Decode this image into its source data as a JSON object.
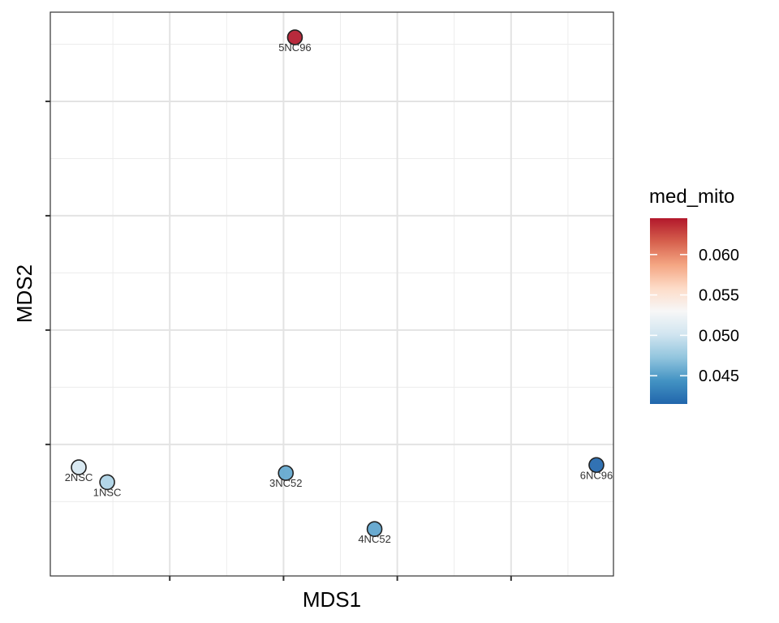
{
  "chart_data": {
    "type": "scatter",
    "xlabel": "MDS1",
    "ylabel": "MDS2",
    "xlim": [
      -2.05,
      2.9
    ],
    "ylim": [
      -2.15,
      2.78
    ],
    "x_major_breaks": [
      -1,
      0,
      1,
      2
    ],
    "x_minor_breaks": [
      -1.5,
      -0.5,
      0.5,
      1.5,
      2.5
    ],
    "y_major_breaks": [
      -1,
      0,
      1,
      2
    ],
    "y_minor_breaks": [
      -1.5,
      -0.5,
      0.5,
      1.5,
      2.5
    ],
    "grid": true,
    "x_tick_labels_shown": false,
    "y_tick_labels_shown": false,
    "points": [
      {
        "label": "5NC96",
        "x": 0.1,
        "y": 2.56,
        "med_mito": 0.0645
      },
      {
        "label": "2NSC",
        "x": -1.8,
        "y": -1.2,
        "med_mito": 0.0505
      },
      {
        "label": "1NSC",
        "x": -1.55,
        "y": -1.33,
        "med_mito": 0.0485
      },
      {
        "label": "3NC52",
        "x": 0.02,
        "y": -1.25,
        "med_mito": 0.0455
      },
      {
        "label": "4NC52",
        "x": 0.8,
        "y": -1.74,
        "med_mito": 0.0453
      },
      {
        "label": "6NC96",
        "x": 2.75,
        "y": -1.18,
        "med_mito": 0.0415
      }
    ],
    "legend": {
      "title": "med_mito",
      "position": "right",
      "range": [
        0.0415,
        0.0645
      ],
      "ticks": [
        {
          "value": 0.045,
          "label": "0.045"
        },
        {
          "value": 0.05,
          "label": "0.050"
        },
        {
          "value": 0.055,
          "label": "0.055"
        },
        {
          "value": 0.06,
          "label": "0.060"
        }
      ],
      "colors": [
        "#2166AC",
        "#4393C3",
        "#92C5DE",
        "#D1E5F0",
        "#F7F7F7",
        "#FDDBC7",
        "#F4A582",
        "#D6604D",
        "#B2182B"
      ]
    }
  }
}
